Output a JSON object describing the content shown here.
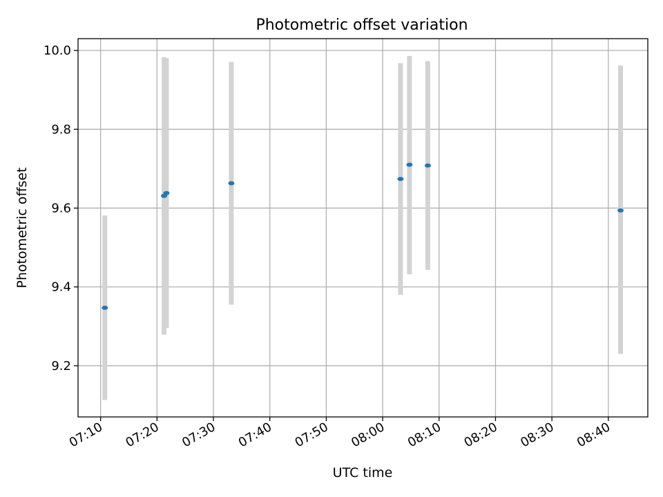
{
  "chart_data": {
    "type": "scatter",
    "title": "Photometric offset variation",
    "xlabel": "UTC time",
    "ylabel": "Photometric offset",
    "xlim": [
      "07:06",
      "08:47"
    ],
    "ylim": [
      9.07,
      10.03
    ],
    "grid": true,
    "x_ticks": [
      "07:10",
      "07:20",
      "07:30",
      "07:40",
      "07:50",
      "08:00",
      "08:10",
      "08:20",
      "08:30",
      "08:40"
    ],
    "y_ticks": [
      "9.2",
      "9.4",
      "9.6",
      "9.8",
      "10.0"
    ],
    "series": [
      {
        "marker_color": "#1f77b4",
        "errorbar_color": "#d3d3d3",
        "points": [
          {
            "x": "07:10:45",
            "y": 9.347,
            "ylow": 9.113,
            "yhigh": 9.581
          },
          {
            "x": "07:21:15",
            "y": 9.631,
            "ylow": 9.279,
            "yhigh": 9.983
          },
          {
            "x": "07:21:40",
            "y": 9.638,
            "ylow": 9.296,
            "yhigh": 9.98
          },
          {
            "x": "07:33:10",
            "y": 9.663,
            "ylow": 9.355,
            "yhigh": 9.971
          },
          {
            "x": "08:03:10",
            "y": 9.674,
            "ylow": 9.38,
            "yhigh": 9.968
          },
          {
            "x": "08:04:45",
            "y": 9.71,
            "ylow": 9.432,
            "yhigh": 9.986
          },
          {
            "x": "08:08:00",
            "y": 9.708,
            "ylow": 9.443,
            "yhigh": 9.973
          },
          {
            "x": "08:42:10",
            "y": 9.594,
            "ylow": 9.23,
            "yhigh": 9.962
          }
        ]
      }
    ]
  }
}
